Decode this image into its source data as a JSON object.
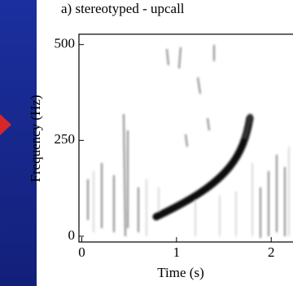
{
  "chart_data": {
    "type": "spectrogram",
    "title": "a) stereotyped - upcall",
    "x_label": "Time (s)",
    "y_label": "Frequency (Hz)",
    "xlim": [
      -0.03,
      2.23
    ],
    "xticks": [
      0,
      1,
      2
    ],
    "ylim": [
      -15,
      527
    ],
    "yticks": [
      0,
      250,
      500
    ]
  }
}
